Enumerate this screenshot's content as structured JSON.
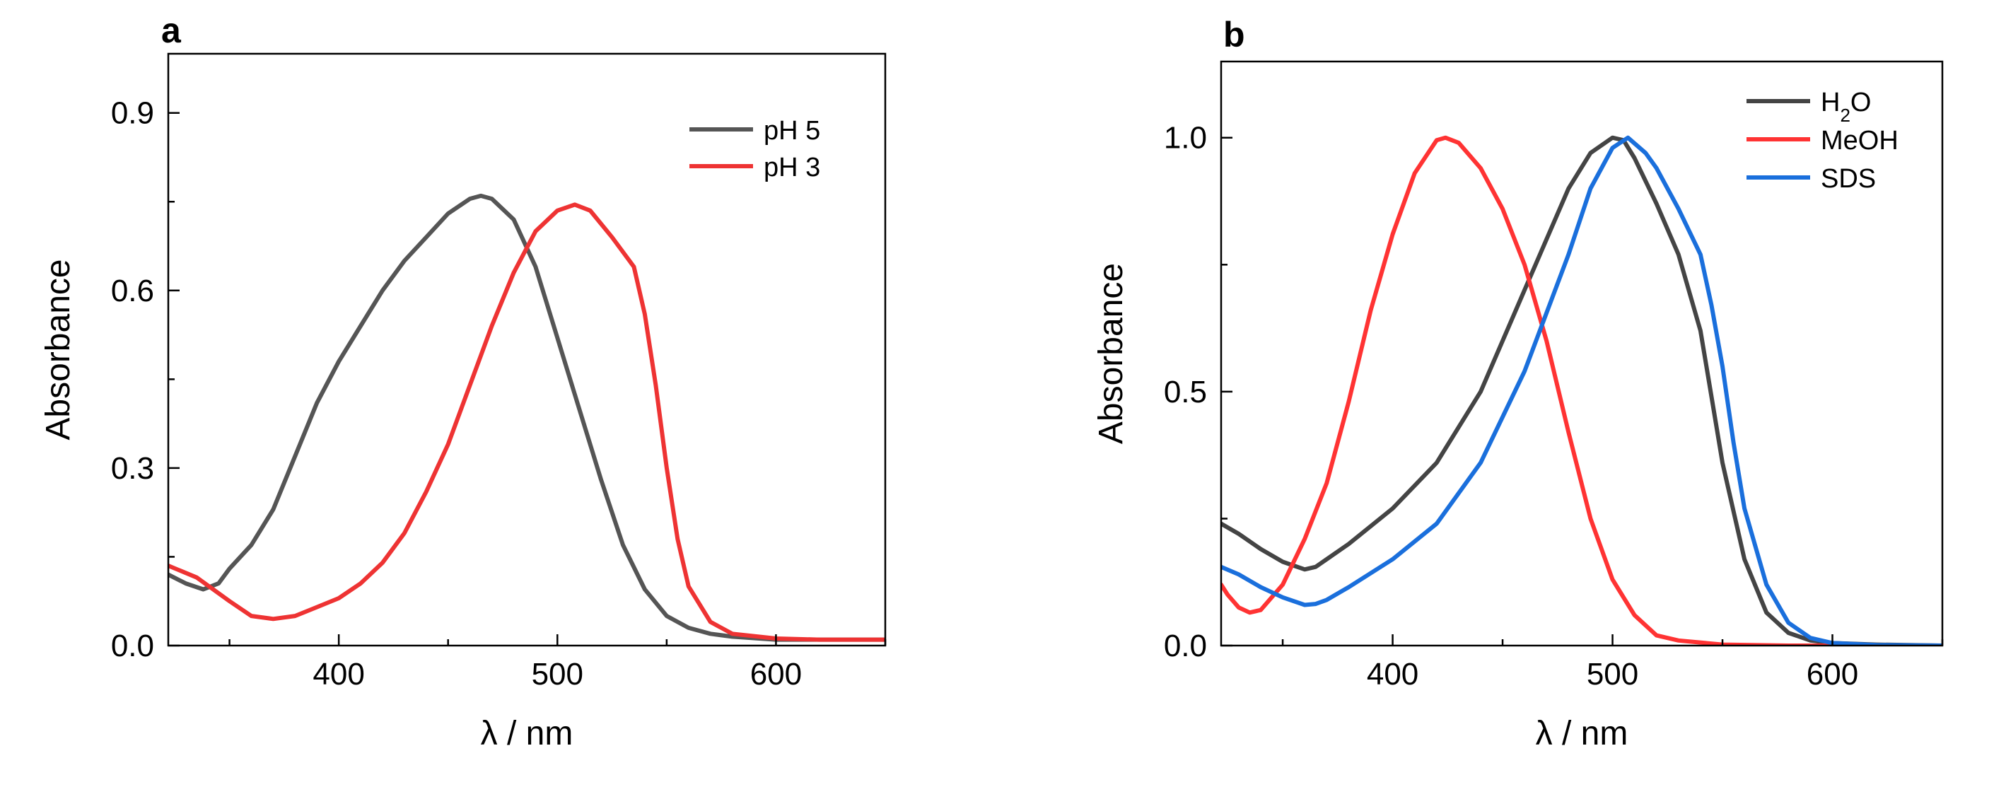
{
  "chart_data": [
    {
      "panel_label": "a",
      "type": "line",
      "xlabel": "λ / nm",
      "ylabel": "Absorbance",
      "xlim": [
        322,
        650
      ],
      "ylim": [
        0,
        1.0
      ],
      "xticks": [
        400,
        500,
        600
      ],
      "xtick_labels": [
        "400",
        "500",
        "600"
      ],
      "yticks": [
        0.0,
        0.3,
        0.6,
        0.9
      ],
      "ytick_labels": [
        "0.0",
        "0.3",
        "0.6",
        "0.9"
      ],
      "grid": false,
      "legend_position": "top-right",
      "series": [
        {
          "name": "pH 5",
          "color": "#555555",
          "x": [
            322,
            330,
            338,
            345,
            350,
            360,
            370,
            380,
            390,
            400,
            410,
            420,
            430,
            440,
            450,
            460,
            465,
            470,
            480,
            490,
            500,
            510,
            520,
            530,
            540,
            550,
            560,
            570,
            580,
            600,
            620,
            650
          ],
          "y": [
            0.12,
            0.105,
            0.095,
            0.105,
            0.13,
            0.17,
            0.23,
            0.32,
            0.41,
            0.48,
            0.54,
            0.6,
            0.65,
            0.69,
            0.73,
            0.755,
            0.76,
            0.755,
            0.72,
            0.64,
            0.52,
            0.4,
            0.28,
            0.17,
            0.095,
            0.05,
            0.03,
            0.02,
            0.015,
            0.01,
            0.01,
            0.01
          ]
        },
        {
          "name": "pH 3",
          "color": "#ee3333",
          "x": [
            322,
            335,
            350,
            360,
            370,
            380,
            390,
            400,
            410,
            420,
            430,
            440,
            450,
            460,
            470,
            480,
            490,
            500,
            508,
            515,
            525,
            535,
            540,
            545,
            550,
            555,
            560,
            570,
            580,
            600,
            620,
            650
          ],
          "y": [
            0.135,
            0.115,
            0.075,
            0.05,
            0.045,
            0.05,
            0.065,
            0.08,
            0.105,
            0.14,
            0.19,
            0.26,
            0.34,
            0.44,
            0.54,
            0.63,
            0.7,
            0.735,
            0.745,
            0.735,
            0.69,
            0.64,
            0.56,
            0.44,
            0.3,
            0.18,
            0.1,
            0.04,
            0.02,
            0.012,
            0.01,
            0.01
          ]
        }
      ]
    },
    {
      "panel_label": "b",
      "type": "line",
      "xlabel": "λ / nm",
      "ylabel": "Absorbance",
      "xlim": [
        322,
        650
      ],
      "ylim": [
        0,
        1.15
      ],
      "xticks": [
        400,
        500,
        600
      ],
      "xtick_labels": [
        "400",
        "500",
        "600"
      ],
      "yticks": [
        0.0,
        0.5,
        1.0
      ],
      "ytick_labels": [
        "0.0",
        "0.5",
        "1.0"
      ],
      "grid": false,
      "legend_position": "top-right",
      "series": [
        {
          "name": "H2O",
          "name_main": "H",
          "name_sub": "2",
          "name_tail": "O",
          "color": "#444444",
          "x": [
            322,
            330,
            340,
            350,
            360,
            365,
            370,
            380,
            400,
            420,
            440,
            460,
            480,
            490,
            500,
            505,
            510,
            520,
            530,
            540,
            545,
            550,
            560,
            570,
            580,
            590,
            600,
            620,
            650
          ],
          "y": [
            0.24,
            0.22,
            0.19,
            0.165,
            0.15,
            0.155,
            0.17,
            0.2,
            0.27,
            0.36,
            0.5,
            0.7,
            0.9,
            0.97,
            1.0,
            0.995,
            0.96,
            0.87,
            0.77,
            0.62,
            0.49,
            0.36,
            0.17,
            0.065,
            0.025,
            0.01,
            0.005,
            0.002,
            0.0
          ]
        },
        {
          "name": "MeOH",
          "color": "#ff3333",
          "x": [
            322,
            325,
            330,
            335,
            340,
            350,
            360,
            370,
            380,
            390,
            400,
            410,
            420,
            424,
            430,
            440,
            450,
            460,
            470,
            480,
            490,
            500,
            510,
            520,
            530,
            550,
            580,
            620,
            650
          ],
          "y": [
            0.12,
            0.1,
            0.075,
            0.065,
            0.07,
            0.12,
            0.21,
            0.32,
            0.48,
            0.66,
            0.81,
            0.93,
            0.995,
            1.0,
            0.99,
            0.94,
            0.86,
            0.75,
            0.6,
            0.42,
            0.25,
            0.13,
            0.06,
            0.02,
            0.01,
            0.002,
            0.0,
            0.0,
            0.0
          ]
        },
        {
          "name": "SDS",
          "color": "#1a6fdc",
          "x": [
            322,
            330,
            340,
            350,
            360,
            365,
            370,
            380,
            400,
            420,
            440,
            460,
            480,
            490,
            500,
            507,
            515,
            520,
            530,
            540,
            545,
            550,
            555,
            560,
            570,
            580,
            590,
            600,
            620,
            650
          ],
          "y": [
            0.155,
            0.14,
            0.115,
            0.095,
            0.08,
            0.082,
            0.09,
            0.115,
            0.17,
            0.24,
            0.36,
            0.54,
            0.77,
            0.9,
            0.98,
            1.0,
            0.97,
            0.94,
            0.86,
            0.77,
            0.67,
            0.55,
            0.4,
            0.27,
            0.12,
            0.045,
            0.015,
            0.005,
            0.001,
            0.0
          ]
        }
      ]
    }
  ]
}
